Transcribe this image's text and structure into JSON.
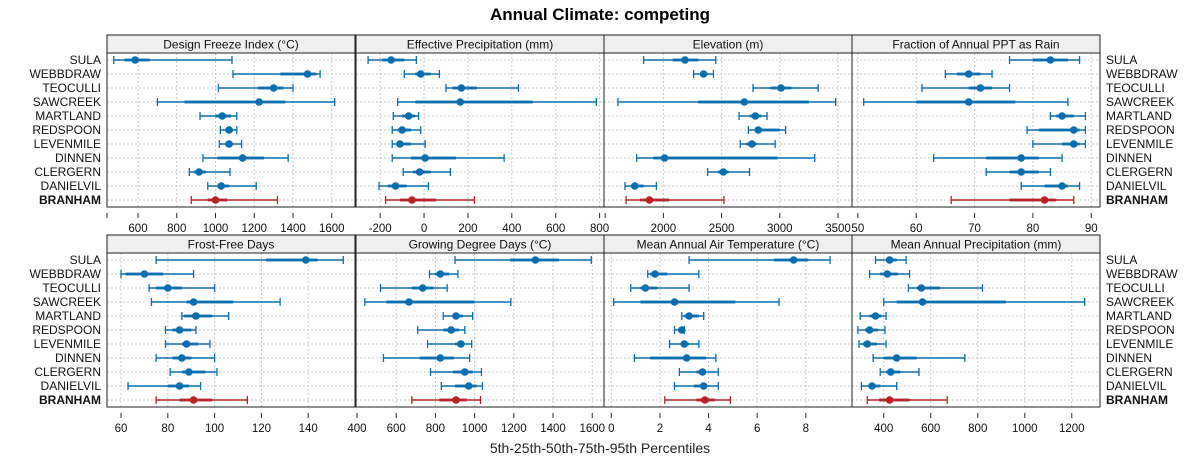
{
  "title": "Annual Climate: competing",
  "xlabel": "5th-25th-50th-75th-95th Percentiles",
  "colors": {
    "series": "#0a6eae",
    "highlight": "#b52326",
    "strip": "#efefef"
  },
  "chart_data": {
    "type": "dot-whisker",
    "title": "Annual Climate: competing",
    "xlabel": "5th-25th-50th-75th-95th Percentiles",
    "rows": [
      "SULA",
      "WEBBDRAW",
      "TEOCULLI",
      "SAWCREEK",
      "MARTLAND",
      "REDSPOON",
      "LEVENMILE",
      "DINNEN",
      "CLERGERN",
      "DANIELVIL",
      "BRANHAM"
    ],
    "highlight_row": "BRANHAM",
    "grid": true,
    "panels": [
      {
        "title": "Design Freeze Index (°C)",
        "xlim": [
          440,
          1720
        ],
        "ticks": [
          600,
          800,
          1000,
          1200,
          1400,
          1600
        ],
        "extra_ticks": [
          440
        ],
        "stats": [
          [
            475,
            530,
            585,
            660,
            1085
          ],
          [
            1090,
            1335,
            1475,
            1520,
            1540
          ],
          [
            1015,
            1220,
            1300,
            1350,
            1400
          ],
          [
            700,
            840,
            1225,
            1360,
            1615
          ],
          [
            920,
            1000,
            1035,
            1080,
            1110
          ],
          [
            1025,
            1050,
            1070,
            1090,
            1110
          ],
          [
            1020,
            1050,
            1070,
            1090,
            1135
          ],
          [
            935,
            1010,
            1140,
            1250,
            1375
          ],
          [
            865,
            890,
            915,
            950,
            1075
          ],
          [
            960,
            1010,
            1030,
            1070,
            1210
          ],
          [
            875,
            960,
            1000,
            1060,
            1320
          ]
        ]
      },
      {
        "title": "Effective Precipitation (mm)",
        "xlim": [
          -310,
          820
        ],
        "ticks": [
          -200,
          0,
          200,
          400,
          600,
          800
        ],
        "extra_ticks": [],
        "stats": [
          [
            -255,
            -190,
            -150,
            -90,
            -35
          ],
          [
            -90,
            -40,
            -15,
            30,
            70
          ],
          [
            100,
            130,
            170,
            240,
            430
          ],
          [
            -120,
            -40,
            165,
            495,
            785
          ],
          [
            -140,
            -100,
            -70,
            -40,
            -25
          ],
          [
            -145,
            -120,
            -100,
            -60,
            -15
          ],
          [
            -145,
            -120,
            -110,
            -60,
            5
          ],
          [
            -145,
            -60,
            5,
            145,
            365
          ],
          [
            -95,
            -50,
            -20,
            30,
            120
          ],
          [
            -205,
            -165,
            -130,
            -80,
            20
          ],
          [
            -175,
            -110,
            -55,
            55,
            230
          ]
        ]
      },
      {
        "title": "Elevation (m)",
        "xlim": [
          1490,
          3620
        ],
        "ticks": [
          2000,
          2500,
          3000,
          3500
        ],
        "extra_ticks": [
          1500
        ],
        "stats": [
          [
            1830,
            2080,
            2185,
            2300,
            2450
          ],
          [
            2260,
            2320,
            2345,
            2380,
            2430
          ],
          [
            2770,
            2920,
            3010,
            3100,
            3330
          ],
          [
            1610,
            2300,
            2695,
            3250,
            3480
          ],
          [
            2650,
            2740,
            2790,
            2840,
            2890
          ],
          [
            2730,
            2790,
            2815,
            3000,
            3050
          ],
          [
            2660,
            2710,
            2760,
            2800,
            2960
          ],
          [
            1770,
            1915,
            2010,
            2980,
            3300
          ],
          [
            2380,
            2470,
            2515,
            2560,
            2740
          ],
          [
            1670,
            1720,
            1755,
            1830,
            1940
          ],
          [
            1680,
            1800,
            1880,
            2050,
            2520
          ]
        ]
      },
      {
        "title": "Fraction of Annual PPT as Rain",
        "xlim": [
          49,
          91.5
        ],
        "ticks": [
          50,
          60,
          70,
          80,
          90
        ],
        "extra_ticks": [],
        "stats": [
          [
            76,
            80,
            83,
            86,
            88
          ],
          [
            65,
            67,
            69,
            71,
            73
          ],
          [
            61,
            69,
            71,
            73,
            76
          ],
          [
            51,
            60,
            69,
            77,
            86
          ],
          [
            83,
            84,
            85,
            87,
            89
          ],
          [
            79,
            81,
            87,
            88,
            89
          ],
          [
            80,
            85,
            87,
            88,
            89
          ],
          [
            63,
            72,
            78,
            81,
            85
          ],
          [
            72,
            76,
            78,
            81,
            83
          ],
          [
            78,
            82,
            85,
            86,
            88
          ],
          [
            66,
            76,
            82,
            84,
            87
          ]
        ]
      },
      {
        "title": "Frost-Free Days",
        "xlim": [
          54,
          160
        ],
        "ticks": [
          60,
          80,
          100,
          120,
          140
        ],
        "extra_ticks": [],
        "stats": [
          [
            75,
            122,
            139,
            144,
            155
          ],
          [
            60,
            62,
            70,
            78,
            91
          ],
          [
            72,
            75,
            80,
            86,
            100
          ],
          [
            73,
            88,
            91,
            108,
            128
          ],
          [
            86,
            87,
            92,
            99,
            106
          ],
          [
            79,
            82,
            85,
            90,
            92
          ],
          [
            79,
            86,
            88,
            93,
            98
          ],
          [
            75,
            82,
            86,
            90,
            100
          ],
          [
            81,
            86,
            89,
            96,
            101
          ],
          [
            63,
            80,
            85,
            89,
            94
          ],
          [
            75,
            85,
            91,
            99,
            114
          ]
        ]
      },
      {
        "title": "Growing Degree Days (°C)",
        "xlim": [
          395,
          1660
        ],
        "ticks": [
          400,
          600,
          800,
          1000,
          1200,
          1400,
          1600
        ],
        "extra_ticks": [],
        "stats": [
          [
            900,
            1180,
            1310,
            1430,
            1595
          ],
          [
            770,
            800,
            825,
            870,
            915
          ],
          [
            520,
            680,
            735,
            790,
            860
          ],
          [
            440,
            550,
            665,
            1000,
            1185
          ],
          [
            840,
            890,
            905,
            940,
            990
          ],
          [
            710,
            840,
            880,
            920,
            950
          ],
          [
            760,
            900,
            930,
            950,
            985
          ],
          [
            535,
            720,
            825,
            895,
            975
          ],
          [
            775,
            890,
            950,
            990,
            1035
          ],
          [
            830,
            900,
            970,
            1010,
            1040
          ],
          [
            680,
            820,
            905,
            960,
            1030
          ]
        ]
      },
      {
        "title": "Mean Annual Air Temperature (°C)",
        "xlim": [
          -0.3,
          9.9
        ],
        "ticks": [
          0,
          2,
          4,
          6,
          8
        ],
        "extra_ticks": [],
        "stats": [
          [
            3.2,
            6.7,
            7.5,
            8.1,
            9.0
          ],
          [
            1.5,
            1.6,
            1.8,
            2.3,
            3.6
          ],
          [
            0.8,
            1.2,
            1.4,
            1.9,
            3.2
          ],
          [
            0.1,
            1.2,
            2.6,
            5.1,
            6.9
          ],
          [
            2.9,
            3.0,
            3.2,
            3.6,
            3.8
          ],
          [
            2.6,
            2.75,
            2.9,
            2.95,
            3.0
          ],
          [
            2.4,
            2.9,
            3.0,
            3.2,
            3.6
          ],
          [
            0.95,
            1.6,
            3.1,
            3.9,
            4.3
          ],
          [
            2.8,
            3.5,
            3.75,
            3.9,
            4.4
          ],
          [
            2.6,
            3.4,
            3.8,
            3.95,
            4.4
          ],
          [
            2.2,
            3.5,
            3.85,
            4.25,
            4.9
          ]
        ]
      },
      {
        "title": "Mean Annual Precipitation (mm)",
        "xlim": [
          265,
          1320
        ],
        "ticks": [
          400,
          600,
          800,
          1000,
          1200
        ],
        "extra_ticks": [],
        "stats": [
          [
            365,
            410,
            425,
            455,
            495
          ],
          [
            340,
            385,
            415,
            460,
            510
          ],
          [
            505,
            540,
            560,
            640,
            820
          ],
          [
            400,
            455,
            565,
            920,
            1255
          ],
          [
            300,
            340,
            365,
            390,
            410
          ],
          [
            290,
            320,
            340,
            375,
            405
          ],
          [
            295,
            310,
            330,
            370,
            410
          ],
          [
            355,
            400,
            455,
            540,
            745
          ],
          [
            385,
            410,
            430,
            470,
            550
          ],
          [
            305,
            335,
            350,
            385,
            455
          ],
          [
            330,
            380,
            425,
            510,
            670
          ]
        ]
      }
    ]
  }
}
